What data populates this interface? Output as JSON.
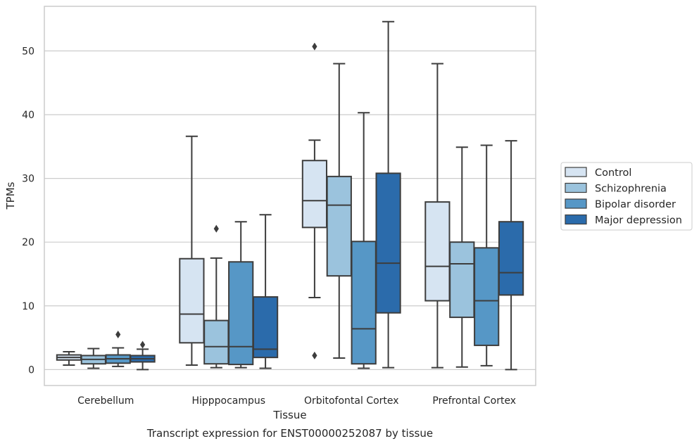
{
  "chart_data": {
    "type": "box",
    "title": "Transcript expression for ENST00000252087 by tissue",
    "xlabel": "Tissue",
    "ylabel": "TPMs",
    "ylim": [
      -2.5,
      57
    ],
    "yticks": [
      0,
      10,
      20,
      30,
      40,
      50
    ],
    "grid": "horizontal",
    "legend_position": "right, outside plot",
    "categories": [
      "Cerebellum",
      "Hipppocampus",
      "Orbitofontal Cortex",
      "Prefrontal Cortex"
    ],
    "series": [
      {
        "name": "Control",
        "color": "#d6e4f2",
        "boxes": [
          {
            "whisker_low": 0.7,
            "q1": 1.5,
            "median": 1.9,
            "q3": 2.3,
            "whisker_high": 2.8,
            "outliers": []
          },
          {
            "whisker_low": 0.7,
            "q1": 4.2,
            "median": 8.7,
            "q3": 17.4,
            "whisker_high": 36.6,
            "outliers": []
          },
          {
            "whisker_low": 11.3,
            "q1": 22.3,
            "median": 26.5,
            "q3": 32.8,
            "whisker_high": 36.0,
            "outliers": [
              50.7,
              2.2
            ]
          },
          {
            "whisker_low": 0.3,
            "q1": 10.8,
            "median": 16.2,
            "q3": 26.3,
            "whisker_high": 48.0,
            "outliers": []
          }
        ]
      },
      {
        "name": "Schizophrenia",
        "color": "#9bc3dd",
        "boxes": [
          {
            "whisker_low": 0.2,
            "q1": 0.9,
            "median": 1.6,
            "q3": 2.2,
            "whisker_high": 3.3,
            "outliers": []
          },
          {
            "whisker_low": 0.3,
            "q1": 0.9,
            "median": 3.6,
            "q3": 7.7,
            "whisker_high": 17.5,
            "outliers": [
              22.1
            ]
          },
          {
            "whisker_low": 1.8,
            "q1": 14.7,
            "median": 25.8,
            "q3": 30.3,
            "whisker_high": 48.0,
            "outliers": []
          },
          {
            "whisker_low": 0.4,
            "q1": 8.2,
            "median": 16.6,
            "q3": 20.0,
            "whisker_high": 34.9,
            "outliers": []
          }
        ]
      },
      {
        "name": "Bipolar disorder",
        "color": "#5697c6",
        "boxes": [
          {
            "whisker_low": 0.5,
            "q1": 1.0,
            "median": 1.7,
            "q3": 2.3,
            "whisker_high": 3.4,
            "outliers": [
              5.5
            ]
          },
          {
            "whisker_low": 0.3,
            "q1": 0.8,
            "median": 3.6,
            "q3": 16.9,
            "whisker_high": 23.2,
            "outliers": []
          },
          {
            "whisker_low": 0.2,
            "q1": 0.9,
            "median": 6.4,
            "q3": 20.1,
            "whisker_high": 40.3,
            "outliers": []
          },
          {
            "whisker_low": 0.6,
            "q1": 3.8,
            "median": 10.8,
            "q3": 19.1,
            "whisker_high": 35.2,
            "outliers": []
          }
        ]
      },
      {
        "name": "Major depression",
        "color": "#2b6bab",
        "boxes": [
          {
            "whisker_low": 0.0,
            "q1": 1.2,
            "median": 1.7,
            "q3": 2.2,
            "whisker_high": 3.2,
            "outliers": [
              3.9
            ]
          },
          {
            "whisker_low": 0.2,
            "q1": 1.9,
            "median": 3.2,
            "q3": 11.4,
            "whisker_high": 24.3,
            "outliers": []
          },
          {
            "whisker_low": 0.3,
            "q1": 8.9,
            "median": 16.7,
            "q3": 30.8,
            "whisker_high": 54.6,
            "outliers": []
          },
          {
            "whisker_low": 0.0,
            "q1": 11.7,
            "median": 15.2,
            "q3": 23.2,
            "whisker_high": 35.9,
            "outliers": []
          }
        ]
      }
    ]
  }
}
